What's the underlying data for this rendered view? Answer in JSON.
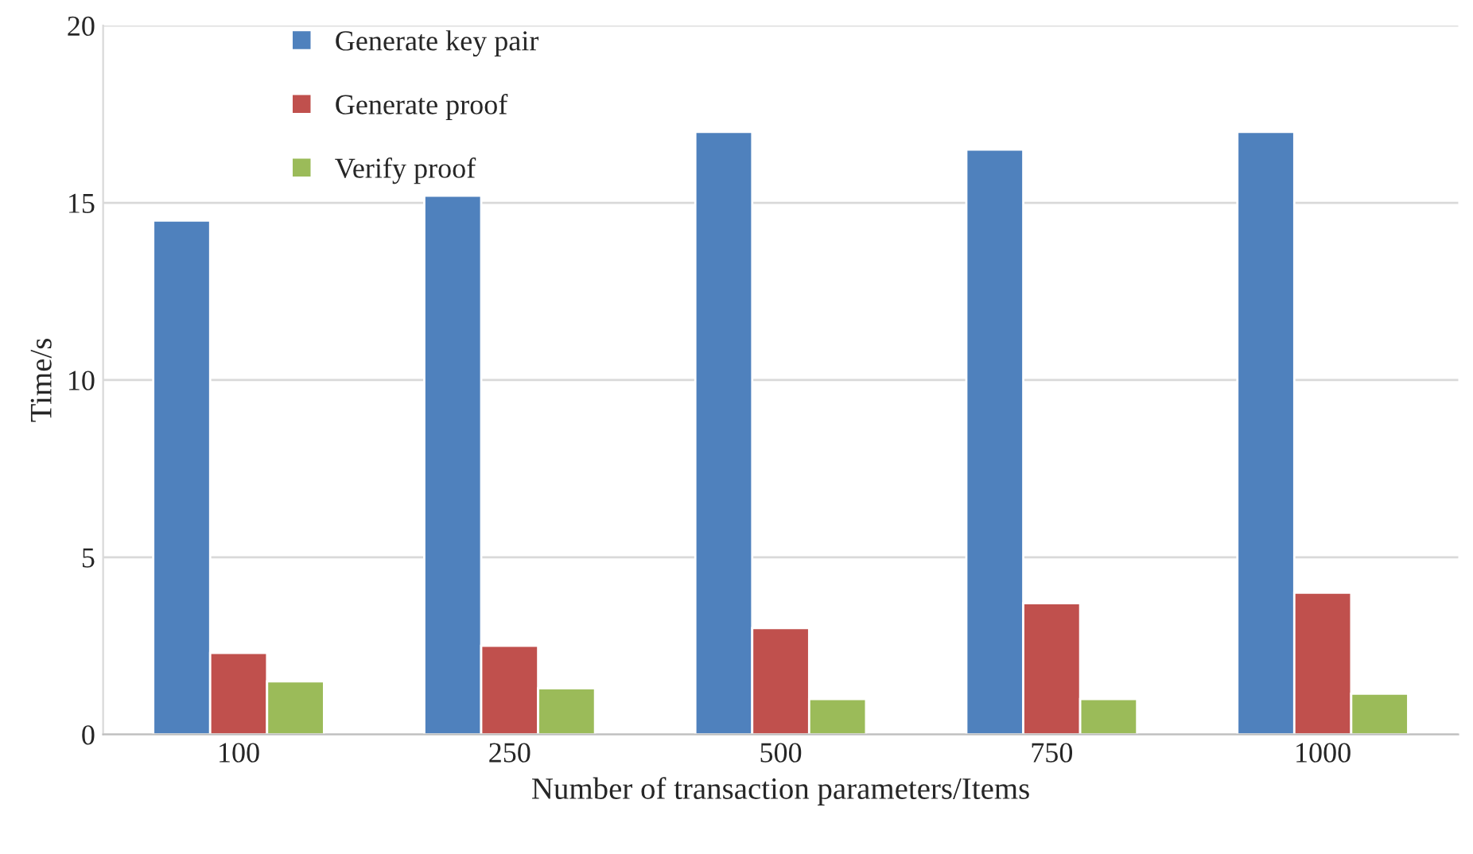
{
  "chart_data": {
    "type": "bar",
    "xlabel": "Number of transaction parameters/Items",
    "ylabel": "Time/s",
    "categories": [
      "100",
      "250",
      "500",
      "750",
      "1000"
    ],
    "series": [
      {
        "name": "Generate key pair",
        "color": "#4f81bd",
        "values": [
          14.5,
          15.2,
          17.0,
          16.5,
          17.0
        ]
      },
      {
        "name": "Generate proof",
        "color": "#c0504d",
        "values": [
          2.3,
          2.5,
          3.0,
          3.7,
          4.0
        ]
      },
      {
        "name": "Verify proof",
        "color": "#9bbb59",
        "values": [
          1.5,
          1.3,
          1.0,
          1.0,
          1.15
        ]
      }
    ],
    "ylim": [
      0,
      20
    ],
    "yticks": [
      0,
      5,
      10,
      15,
      20
    ],
    "grid": "y",
    "legend": "top left"
  }
}
